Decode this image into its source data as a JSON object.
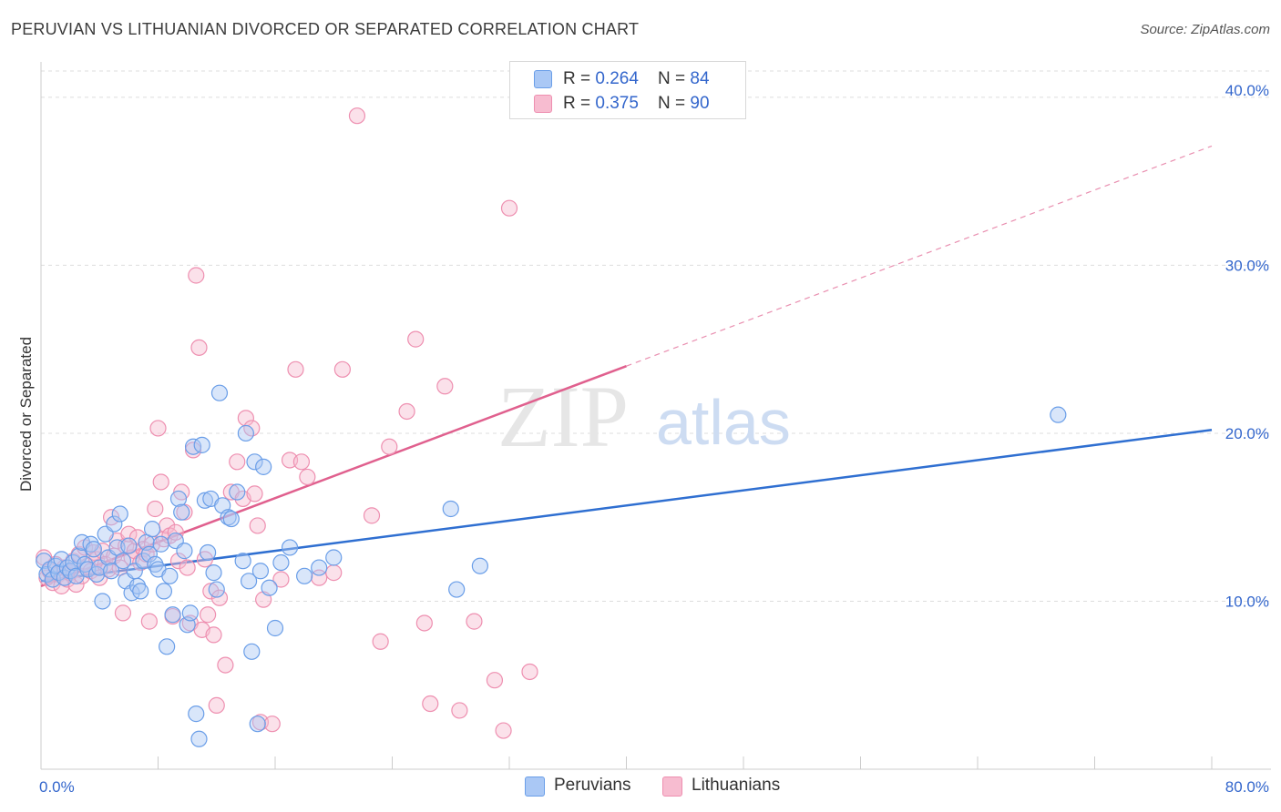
{
  "title": "PERUVIAN VS LITHUANIAN DIVORCED OR SEPARATED CORRELATION CHART",
  "source": "Source: ZipAtlas.com",
  "watermark": {
    "zip": "ZIP",
    "atlas": "atlas"
  },
  "colors": {
    "peruvian_fill": "#aac8f5",
    "peruvian_stroke": "#6a9ee8",
    "peruvian_line": "#2f6fd1",
    "lithuanian_fill": "#f7bcd0",
    "lithuanian_stroke": "#ee8fb0",
    "lithuanian_line": "#e0608e",
    "accent_text": "#3366cc"
  },
  "legend": {
    "row1": {
      "r_label": "R = ",
      "r_value": "0.264",
      "n_label": "N = ",
      "n_value": "84"
    },
    "row2": {
      "r_label": "R = ",
      "r_value": "0.375",
      "n_label": "N = ",
      "n_value": "90"
    }
  },
  "bottom_legend": {
    "peruvians": "Peruvians",
    "lithuanians": "Lithuanians"
  },
  "chart_data": {
    "type": "scatter",
    "title": "PERUVIAN VS LITHUANIAN DIVORCED OR SEPARATED CORRELATION CHART",
    "xlabel": "",
    "ylabel": "Divorced or Separated",
    "xlim": [
      0,
      80
    ],
    "ylim": [
      0,
      42
    ],
    "x_tick_labels": [
      "0.0%",
      "80.0%"
    ],
    "y_ticks": [
      10,
      20,
      30,
      40
    ],
    "y_tick_labels": [
      "10.0%",
      "20.0%",
      "30.0%",
      "40.0%"
    ],
    "grid": true,
    "series": [
      {
        "name": "Peruvians",
        "R": 0.264,
        "N": 84,
        "trend": {
          "x0": 0,
          "y0": 11.2,
          "x1": 80,
          "y1": 20.2,
          "dashed_to": 80
        },
        "points": [
          [
            0.2,
            12.4
          ],
          [
            0.4,
            11.6
          ],
          [
            0.6,
            11.9
          ],
          [
            0.8,
            11.3
          ],
          [
            1.0,
            12.1
          ],
          [
            1.2,
            11.7
          ],
          [
            1.4,
            12.5
          ],
          [
            1.6,
            11.4
          ],
          [
            1.8,
            12.0
          ],
          [
            2.0,
            11.8
          ],
          [
            2.2,
            12.3
          ],
          [
            2.4,
            11.5
          ],
          [
            2.6,
            12.7
          ],
          [
            2.8,
            13.5
          ],
          [
            3.0,
            12.2
          ],
          [
            3.2,
            11.9
          ],
          [
            3.4,
            13.4
          ],
          [
            3.6,
            13.1
          ],
          [
            3.8,
            11.6
          ],
          [
            4.0,
            12.0
          ],
          [
            4.2,
            10.0
          ],
          [
            4.4,
            14.0
          ],
          [
            4.6,
            12.6
          ],
          [
            4.8,
            11.8
          ],
          [
            5.0,
            14.6
          ],
          [
            5.2,
            13.2
          ],
          [
            5.4,
            15.2
          ],
          [
            5.6,
            12.4
          ],
          [
            5.8,
            11.2
          ],
          [
            6.0,
            13.3
          ],
          [
            6.2,
            10.5
          ],
          [
            6.4,
            11.8
          ],
          [
            6.6,
            10.9
          ],
          [
            6.8,
            10.6
          ],
          [
            7.0,
            12.4
          ],
          [
            7.2,
            13.5
          ],
          [
            7.4,
            12.8
          ],
          [
            7.6,
            14.3
          ],
          [
            7.8,
            12.2
          ],
          [
            8.0,
            11.9
          ],
          [
            8.2,
            13.4
          ],
          [
            8.4,
            10.6
          ],
          [
            8.6,
            7.3
          ],
          [
            8.8,
            11.5
          ],
          [
            9.0,
            9.2
          ],
          [
            9.2,
            13.6
          ],
          [
            9.4,
            16.1
          ],
          [
            9.6,
            15.3
          ],
          [
            9.8,
            13.0
          ],
          [
            10.0,
            8.6
          ],
          [
            10.2,
            9.3
          ],
          [
            10.4,
            19.2
          ],
          [
            10.6,
            3.3
          ],
          [
            10.8,
            1.8
          ],
          [
            11.0,
            19.3
          ],
          [
            11.2,
            16.0
          ],
          [
            11.4,
            12.9
          ],
          [
            11.6,
            16.1
          ],
          [
            11.8,
            11.7
          ],
          [
            12.0,
            10.7
          ],
          [
            12.2,
            22.4
          ],
          [
            12.4,
            15.7
          ],
          [
            12.8,
            15.0
          ],
          [
            13.0,
            14.9
          ],
          [
            13.4,
            16.5
          ],
          [
            13.8,
            12.4
          ],
          [
            14.0,
            20.0
          ],
          [
            14.2,
            11.2
          ],
          [
            14.4,
            7.0
          ],
          [
            14.6,
            18.3
          ],
          [
            14.8,
            2.7
          ],
          [
            15.0,
            11.8
          ],
          [
            15.2,
            18.0
          ],
          [
            15.6,
            10.8
          ],
          [
            16.0,
            8.4
          ],
          [
            16.4,
            12.3
          ],
          [
            17.0,
            13.2
          ],
          [
            18.0,
            11.5
          ],
          [
            19.0,
            12.0
          ],
          [
            20.0,
            12.6
          ],
          [
            28.0,
            15.5
          ],
          [
            28.4,
            10.7
          ],
          [
            30.0,
            12.1
          ],
          [
            69.5,
            21.1
          ]
        ]
      },
      {
        "name": "Lithuanians",
        "R": 0.375,
        "N": 90,
        "trend": {
          "x0": 0,
          "y0": 10.9,
          "x1": 40,
          "y1": 24.0,
          "dashed_to": 80
        },
        "points": [
          [
            0.2,
            12.6
          ],
          [
            0.4,
            11.4
          ],
          [
            0.6,
            11.8
          ],
          [
            0.8,
            11.1
          ],
          [
            1.0,
            12.2
          ],
          [
            1.2,
            11.6
          ],
          [
            1.4,
            10.9
          ],
          [
            1.6,
            12.0
          ],
          [
            1.8,
            11.3
          ],
          [
            2.0,
            11.7
          ],
          [
            2.2,
            12.4
          ],
          [
            2.4,
            11.0
          ],
          [
            2.6,
            12.8
          ],
          [
            2.8,
            11.5
          ],
          [
            3.0,
            13.2
          ],
          [
            3.2,
            12.1
          ],
          [
            3.4,
            11.8
          ],
          [
            3.6,
            12.9
          ],
          [
            3.8,
            12.5
          ],
          [
            4.0,
            11.4
          ],
          [
            4.2,
            13.0
          ],
          [
            4.4,
            12.2
          ],
          [
            4.6,
            11.9
          ],
          [
            4.8,
            15.0
          ],
          [
            5.0,
            12.7
          ],
          [
            5.2,
            13.6
          ],
          [
            5.4,
            12.0
          ],
          [
            5.6,
            9.3
          ],
          [
            5.8,
            13.3
          ],
          [
            6.0,
            14.0
          ],
          [
            6.2,
            12.6
          ],
          [
            6.4,
            13.0
          ],
          [
            6.6,
            13.8
          ],
          [
            6.8,
            12.3
          ],
          [
            7.0,
            13.1
          ],
          [
            7.2,
            12.8
          ],
          [
            7.4,
            8.8
          ],
          [
            7.6,
            13.4
          ],
          [
            7.8,
            15.5
          ],
          [
            8.0,
            20.3
          ],
          [
            8.2,
            17.1
          ],
          [
            8.4,
            13.7
          ],
          [
            8.6,
            14.5
          ],
          [
            8.8,
            13.9
          ],
          [
            9.0,
            9.1
          ],
          [
            9.2,
            14.1
          ],
          [
            9.4,
            12.4
          ],
          [
            9.6,
            16.5
          ],
          [
            9.8,
            15.3
          ],
          [
            10.0,
            12.0
          ],
          [
            10.2,
            8.7
          ],
          [
            10.4,
            19.0
          ],
          [
            10.6,
            29.4
          ],
          [
            10.8,
            25.1
          ],
          [
            11.0,
            8.3
          ],
          [
            11.2,
            12.5
          ],
          [
            11.4,
            9.2
          ],
          [
            11.6,
            10.6
          ],
          [
            11.8,
            8.0
          ],
          [
            12.0,
            3.8
          ],
          [
            12.2,
            10.2
          ],
          [
            12.6,
            6.2
          ],
          [
            13.0,
            16.5
          ],
          [
            13.4,
            18.3
          ],
          [
            13.8,
            16.1
          ],
          [
            14.0,
            20.9
          ],
          [
            14.4,
            20.3
          ],
          [
            14.6,
            16.4
          ],
          [
            14.8,
            14.5
          ],
          [
            15.0,
            2.8
          ],
          [
            15.2,
            10.1
          ],
          [
            15.8,
            2.7
          ],
          [
            16.4,
            11.3
          ],
          [
            17.0,
            18.4
          ],
          [
            17.4,
            23.8
          ],
          [
            17.8,
            18.3
          ],
          [
            18.2,
            17.4
          ],
          [
            19.0,
            11.4
          ],
          [
            20.0,
            11.7
          ],
          [
            20.6,
            23.8
          ],
          [
            21.6,
            38.9
          ],
          [
            22.6,
            15.1
          ],
          [
            23.2,
            7.6
          ],
          [
            23.8,
            19.2
          ],
          [
            25.0,
            21.3
          ],
          [
            25.6,
            25.6
          ],
          [
            26.2,
            8.7
          ],
          [
            26.6,
            3.9
          ],
          [
            27.6,
            22.8
          ],
          [
            28.6,
            3.5
          ]
        ],
        "extra_points": [
          [
            29.6,
            8.8
          ],
          [
            31.0,
            5.3
          ],
          [
            31.6,
            2.3
          ],
          [
            32.0,
            33.4
          ],
          [
            33.4,
            5.8
          ]
        ]
      }
    ]
  }
}
